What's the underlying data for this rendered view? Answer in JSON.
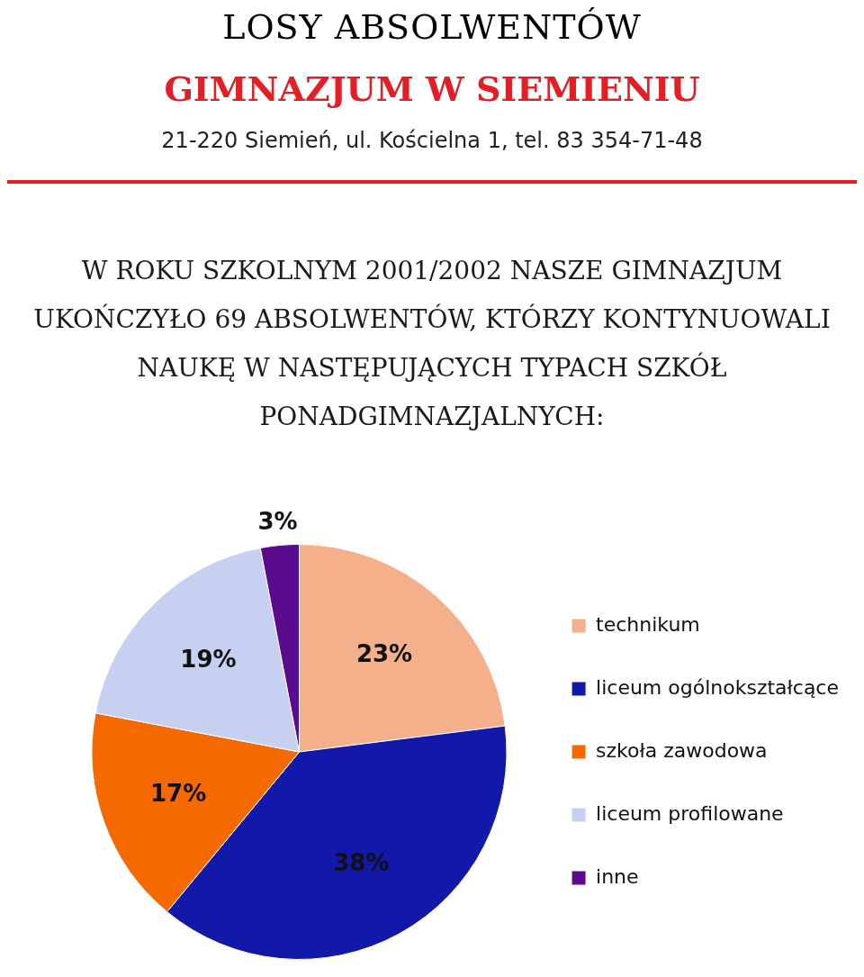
{
  "chart_data": {
    "type": "pie",
    "title": "LOSY ABSOLWENTÓW",
    "subtitle": "W ROKU SZKOLNYM 2001/2002 NASZE GIMNAZJUM UKOŃCZYŁO 69 ABSOLWENTÓW, KTÓRZY KONTYNUOWALI NAUKĘ W NASTĘPUJĄCYCH TYPACH SZKÓŁ PONADGIMNAZJALNYCH:",
    "annotations": [
      "GIMNAZJUM W SIEMIENIU",
      "21-220 Siemień, ul. Kościelna 1, tel. 83 354-71-48"
    ],
    "categories": [
      "technikum",
      "liceum ogólnokształcące",
      "szkoła zawodowa",
      "liceum profilowane",
      "inne"
    ],
    "values": [
      23,
      38,
      17,
      19,
      3
    ],
    "colors": [
      "#f4b08a",
      "#1218a8",
      "#f56a00",
      "#c8d0f2",
      "#5a0a8c"
    ],
    "value_labels": [
      "23%",
      "38%",
      "17%",
      "19%",
      "3%"
    ],
    "legend": "right"
  }
}
